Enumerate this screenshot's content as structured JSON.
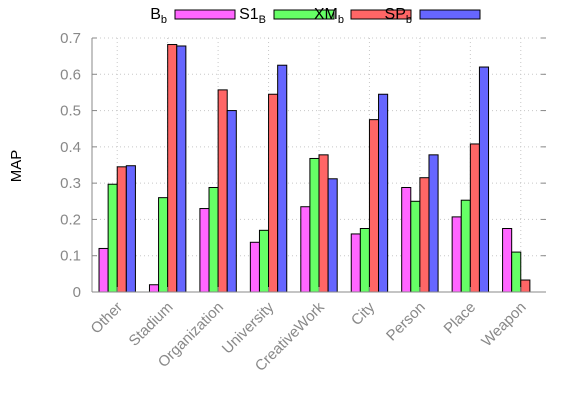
{
  "chart_data": {
    "type": "bar",
    "title": "",
    "xlabel": "",
    "ylabel": "MAP",
    "ylim": [
      0,
      0.7
    ],
    "yticks": [
      0,
      0.1,
      0.2,
      0.3,
      0.4,
      0.5,
      0.6,
      0.7
    ],
    "grid": true,
    "legend_position": "top",
    "categories": [
      "Other",
      "Stadium",
      "Organization",
      "University",
      "CreativeWork",
      "City",
      "Person",
      "Place",
      "Weapon"
    ],
    "series": [
      {
        "name": "B",
        "name_sub": "b",
        "color": "#ff66ff",
        "values": [
          0.12,
          0.02,
          0.23,
          0.137,
          0.235,
          0.16,
          0.288,
          0.207,
          0.175
        ]
      },
      {
        "name": "S1",
        "name_sub": "B",
        "color": "#66ff66",
        "values": [
          0.297,
          0.26,
          0.288,
          0.17,
          0.368,
          0.175,
          0.25,
          0.253,
          0.11
        ]
      },
      {
        "name": "XM",
        "name_sub": "b",
        "color": "#ff6666",
        "values": [
          0.345,
          0.682,
          0.557,
          0.545,
          0.378,
          0.475,
          0.315,
          0.408,
          0.033
        ]
      },
      {
        "name": "SP",
        "name_sub": "b",
        "color": "#6666ff",
        "values": [
          0.348,
          0.678,
          0.5,
          0.625,
          0.312,
          0.545,
          0.378,
          0.62,
          0.0
        ]
      }
    ]
  }
}
